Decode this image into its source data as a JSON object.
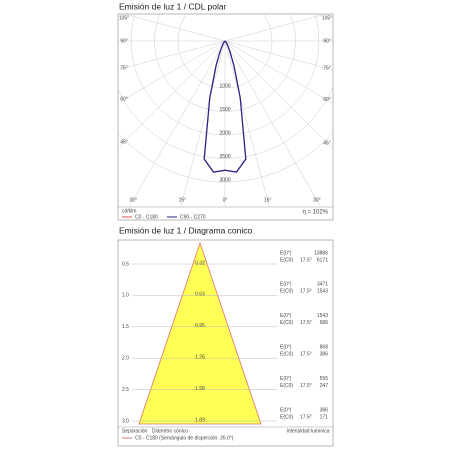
{
  "chart_data": [
    {
      "type": "polar",
      "title": "Emisión de luz 1 / CDL polar",
      "unit": "cd/klm",
      "efficiency": "η = 102%",
      "rlim": [
        0,
        3000
      ],
      "rticks": [
        1000,
        1500,
        2000,
        2500,
        3000
      ],
      "angle_ticks": [
        {
          "value": -105,
          "label": "105°"
        },
        {
          "value": -90,
          "label": "90°"
        },
        {
          "value": -75,
          "label": "75°"
        },
        {
          "value": -60,
          "label": "60°"
        },
        {
          "value": -45,
          "label": "45°"
        },
        {
          "value": -30,
          "label": "30°"
        },
        {
          "value": -15,
          "label": "15°"
        },
        {
          "value": 0,
          "label": "0°"
        },
        {
          "value": 15,
          "label": "15°"
        },
        {
          "value": 30,
          "label": "30°"
        },
        {
          "value": 45,
          "label": "45°"
        },
        {
          "value": 60,
          "label": "60°"
        },
        {
          "value": 75,
          "label": "75°"
        },
        {
          "value": 90,
          "label": "90°"
        },
        {
          "value": 105,
          "label": "105°"
        }
      ],
      "x": [
        -60,
        -55,
        -50,
        -45,
        -40,
        -35,
        -30,
        -25,
        -20,
        -15,
        -10,
        -5,
        0,
        5,
        10,
        15,
        20,
        25,
        30,
        35,
        40,
        45,
        50,
        55,
        60
      ],
      "series": [
        {
          "name": "C0 - C180",
          "color": "#d9534f",
          "values": [
            0,
            0,
            5,
            15,
            30,
            60,
            120,
            250,
            550,
            1250,
            2550,
            2800,
            2750,
            2800,
            2550,
            1250,
            550,
            250,
            120,
            60,
            30,
            15,
            5,
            0,
            0
          ]
        },
        {
          "name": "C90 - C270",
          "color": "#23238f",
          "values": [
            0,
            0,
            5,
            15,
            30,
            60,
            120,
            250,
            550,
            1250,
            2550,
            2800,
            2750,
            2800,
            2550,
            1250,
            550,
            250,
            120,
            60,
            30,
            15,
            5,
            0,
            0
          ]
        }
      ]
    },
    {
      "type": "cone",
      "title": "Emisión de luz 1 / Diagrama conico",
      "color": "#ffff55",
      "edge_color": "#e07070",
      "row_labels": {
        "center": "E(0°)",
        "edge": "E(C0)"
      },
      "rows": [
        {
          "distance": "0.5",
          "diameter": "0.32",
          "angle": "17.5°",
          "e_center": 13886,
          "e_edge": 6171
        },
        {
          "distance": "1.0",
          "diameter": "0.63",
          "angle": "17.5°",
          "e_center": 3471,
          "e_edge": 1543
        },
        {
          "distance": "1.5",
          "diameter": "0.95",
          "angle": "17.5°",
          "e_center": 1543,
          "e_edge": 686
        },
        {
          "distance": "2.0",
          "diameter": "1.26",
          "angle": "17.5°",
          "e_center": 868,
          "e_edge": 386
        },
        {
          "distance": "2.5",
          "diameter": "1.58",
          "angle": "17.5°",
          "e_center": 555,
          "e_edge": 247
        },
        {
          "distance": "3.0",
          "diameter": "1.89",
          "angle": "17.5°",
          "e_center": 386,
          "e_edge": 171
        }
      ],
      "footer": {
        "distance": "Separación",
        "diameter": "Diámetro cónico",
        "intensity": "Intensidad lumínica",
        "legend": "C0 - C180 (Semángulo de dispersión: 35.0°)"
      }
    }
  ]
}
